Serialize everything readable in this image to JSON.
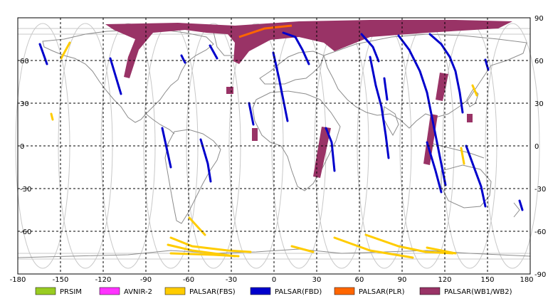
{
  "map": {
    "lon_ticks": [
      "-180",
      "-150",
      "-120",
      "-90",
      "-60",
      "-30",
      "0",
      "30",
      "60",
      "90",
      "120",
      "150",
      "180"
    ],
    "lat_ticks_right": [
      "90",
      "60",
      "30",
      "0",
      "-30",
      "-60",
      "-90"
    ],
    "lat_ticks_left": [
      "60",
      "30",
      "0",
      "-30",
      "-60"
    ]
  },
  "legend": [
    {
      "key": "prsim",
      "label": "PRSIM",
      "color": "#99cc22"
    },
    {
      "key": "avnir",
      "label": "AVNIR-2",
      "color": "#ff33ff"
    },
    {
      "key": "fbs",
      "label": "PALSAR(FBS)",
      "color": "#ffcc00"
    },
    {
      "key": "fbd",
      "label": "PALSAR(FBD)",
      "color": "#0000cc"
    },
    {
      "key": "plr",
      "label": "PALSAR(PLR)",
      "color": "#ff6600"
    },
    {
      "key": "wb",
      "label": "PALSAR(WB1/WB2)",
      "color": "#993366"
    }
  ]
}
